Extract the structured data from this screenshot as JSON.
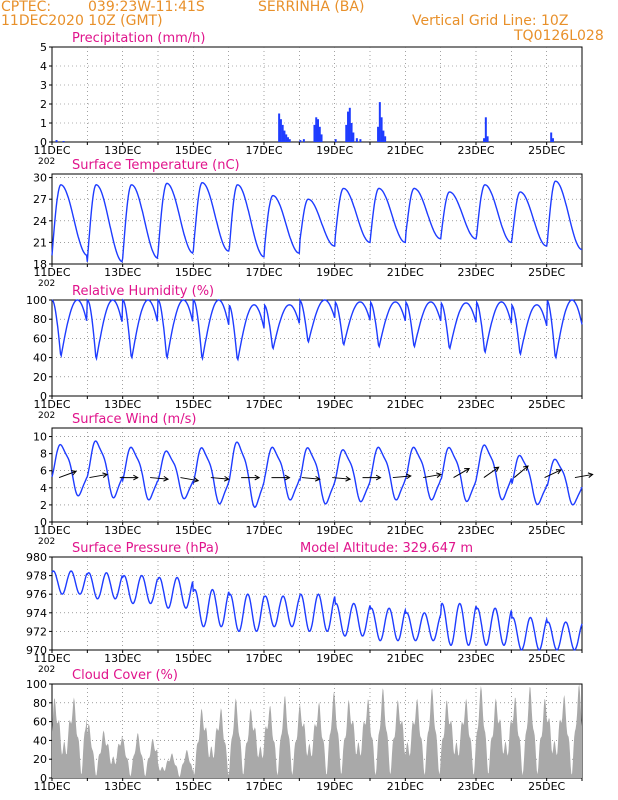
{
  "header": {
    "source": "CPTEC:",
    "coords": "039:23W-11:41S",
    "station": "SERRINHA (BA)",
    "date": "11DEC2020 10Z (GMT)",
    "grid_note": "Vertical Grid Line: 10Z",
    "code": "TQ0126L028",
    "model_altitude": "Model Altitude: 329.647 m"
  },
  "colors": {
    "header": "#e8902a",
    "title": "#e0148c",
    "series": "#1e3cff",
    "cloud": "#a9a9a9",
    "grid": "#666666"
  },
  "x_ticks": [
    "11DEC",
    "13DEC",
    "15DEC",
    "17DEC",
    "19DEC",
    "21DEC",
    "23DEC",
    "25DEC"
  ],
  "x_tick_clipped": "202",
  "chart_data": [
    {
      "type": "bar",
      "title": "Precipitation (mm/h)",
      "ylim": [
        0,
        5
      ],
      "yticks": [
        0,
        1,
        2,
        3,
        4,
        5
      ],
      "x_unit": "days since 11DEC2020 10Z",
      "points": [
        [
          0.1,
          0.1
        ],
        [
          0.3,
          0.05
        ],
        [
          6.4,
          1.5
        ],
        [
          6.45,
          1.2
        ],
        [
          6.5,
          0.9
        ],
        [
          6.55,
          0.6
        ],
        [
          6.6,
          0.4
        ],
        [
          6.65,
          0.25
        ],
        [
          6.7,
          0.15
        ],
        [
          7.0,
          0.1
        ],
        [
          7.1,
          0.15
        ],
        [
          7.4,
          0.9
        ],
        [
          7.45,
          1.3
        ],
        [
          7.5,
          1.2
        ],
        [
          7.55,
          0.8
        ],
        [
          7.6,
          0.4
        ],
        [
          8.0,
          0.15
        ],
        [
          8.3,
          0.9
        ],
        [
          8.35,
          1.6
        ],
        [
          8.4,
          1.8
        ],
        [
          8.45,
          1.0
        ],
        [
          8.5,
          0.5
        ],
        [
          8.6,
          0.2
        ],
        [
          8.7,
          0.15
        ],
        [
          9.2,
          0.8
        ],
        [
          9.25,
          2.1
        ],
        [
          9.3,
          1.3
        ],
        [
          9.35,
          0.6
        ],
        [
          9.4,
          0.3
        ],
        [
          12.2,
          0.2
        ],
        [
          12.25,
          1.3
        ],
        [
          12.3,
          0.3
        ],
        [
          14.1,
          0.5
        ],
        [
          14.15,
          0.2
        ]
      ]
    },
    {
      "type": "line",
      "title": "Surface Temperature (nC)",
      "ylim": [
        18,
        30.5
      ],
      "yticks": [
        18,
        21,
        24,
        27,
        30
      ],
      "pattern_min": [
        19.2,
        18.3,
        18.8,
        19.5,
        19.8,
        19.0,
        19.5,
        20.5,
        21.0,
        21.0,
        21.5,
        21.5,
        21.0,
        20.5,
        20.0,
        19.5,
        20.0
      ],
      "pattern_max": [
        29.0,
        29.0,
        29.0,
        29.2,
        29.3,
        29.0,
        27.5,
        27.0,
        28.5,
        28.5,
        28.5,
        28.0,
        29.0,
        28.0,
        29.5,
        29.0,
        29.0
      ]
    },
    {
      "type": "line",
      "title": "Relative Humidity (%)",
      "ylim": [
        0,
        100
      ],
      "yticks": [
        0,
        20,
        40,
        60,
        80,
        100
      ],
      "pattern_min": [
        40,
        37,
        38,
        38,
        37,
        36,
        48,
        55,
        52,
        50,
        50,
        48,
        44,
        42,
        38,
        40,
        40
      ],
      "pattern_max": [
        100,
        100,
        100,
        100,
        100,
        95,
        95,
        100,
        98,
        98,
        98,
        97,
        98,
        95,
        100,
        98,
        98
      ]
    },
    {
      "type": "line",
      "title": "Surface Wind (m/s)",
      "ylim": [
        0,
        11
      ],
      "yticks": [
        0,
        2,
        4,
        6,
        8,
        10
      ],
      "pattern_min": [
        2.5,
        2.2,
        2.0,
        2.2,
        1.5,
        1.0,
        2.0,
        1.5,
        1.8,
        2.0,
        2.0,
        1.8,
        2.0,
        1.5,
        1.5,
        1.5,
        1.5
      ],
      "pattern_max": [
        9.8,
        10.3,
        9.5,
        9.0,
        9.5,
        10.3,
        9.5,
        9.5,
        9.2,
        9.5,
        9.5,
        9.5,
        9.8,
        8.5,
        8.0,
        7.8,
        7.8
      ],
      "wind_vector_deg_from": [
        250,
        260,
        270,
        275,
        280,
        275,
        270,
        270,
        275,
        275,
        270,
        265,
        260,
        240,
        235,
        230,
        245,
        260
      ]
    },
    {
      "type": "line",
      "title": "Surface Pressure (hPa)",
      "ylim": [
        970,
        980
      ],
      "yticks": [
        970,
        972,
        974,
        976,
        978,
        980
      ],
      "pattern_min": [
        976.0,
        975.5,
        975.0,
        974.5,
        972.5,
        972.0,
        972.5,
        972.0,
        971.5,
        971.0,
        971.0,
        970.5,
        970.5,
        970.0,
        970.0,
        970.2,
        970.5
      ],
      "pattern_max": [
        978.5,
        978.3,
        978.0,
        977.8,
        976.5,
        976.0,
        975.8,
        976.0,
        975.0,
        974.5,
        974.0,
        975.0,
        974.5,
        973.5,
        973.0,
        974.0,
        974.5
      ]
    },
    {
      "type": "area",
      "title": "Cloud Cover (%)",
      "ylim": [
        0,
        100
      ],
      "yticks": [
        0,
        20,
        40,
        60,
        80,
        100
      ],
      "pattern_min": [
        0,
        0,
        0,
        0,
        0,
        0,
        0,
        0,
        0,
        0,
        0,
        0,
        0,
        0,
        0,
        0,
        0
      ],
      "pattern_max": [
        98,
        58,
        48,
        30,
        85,
        85,
        88,
        92,
        96,
        96,
        96,
        96,
        98,
        98,
        100,
        98,
        95
      ]
    }
  ]
}
